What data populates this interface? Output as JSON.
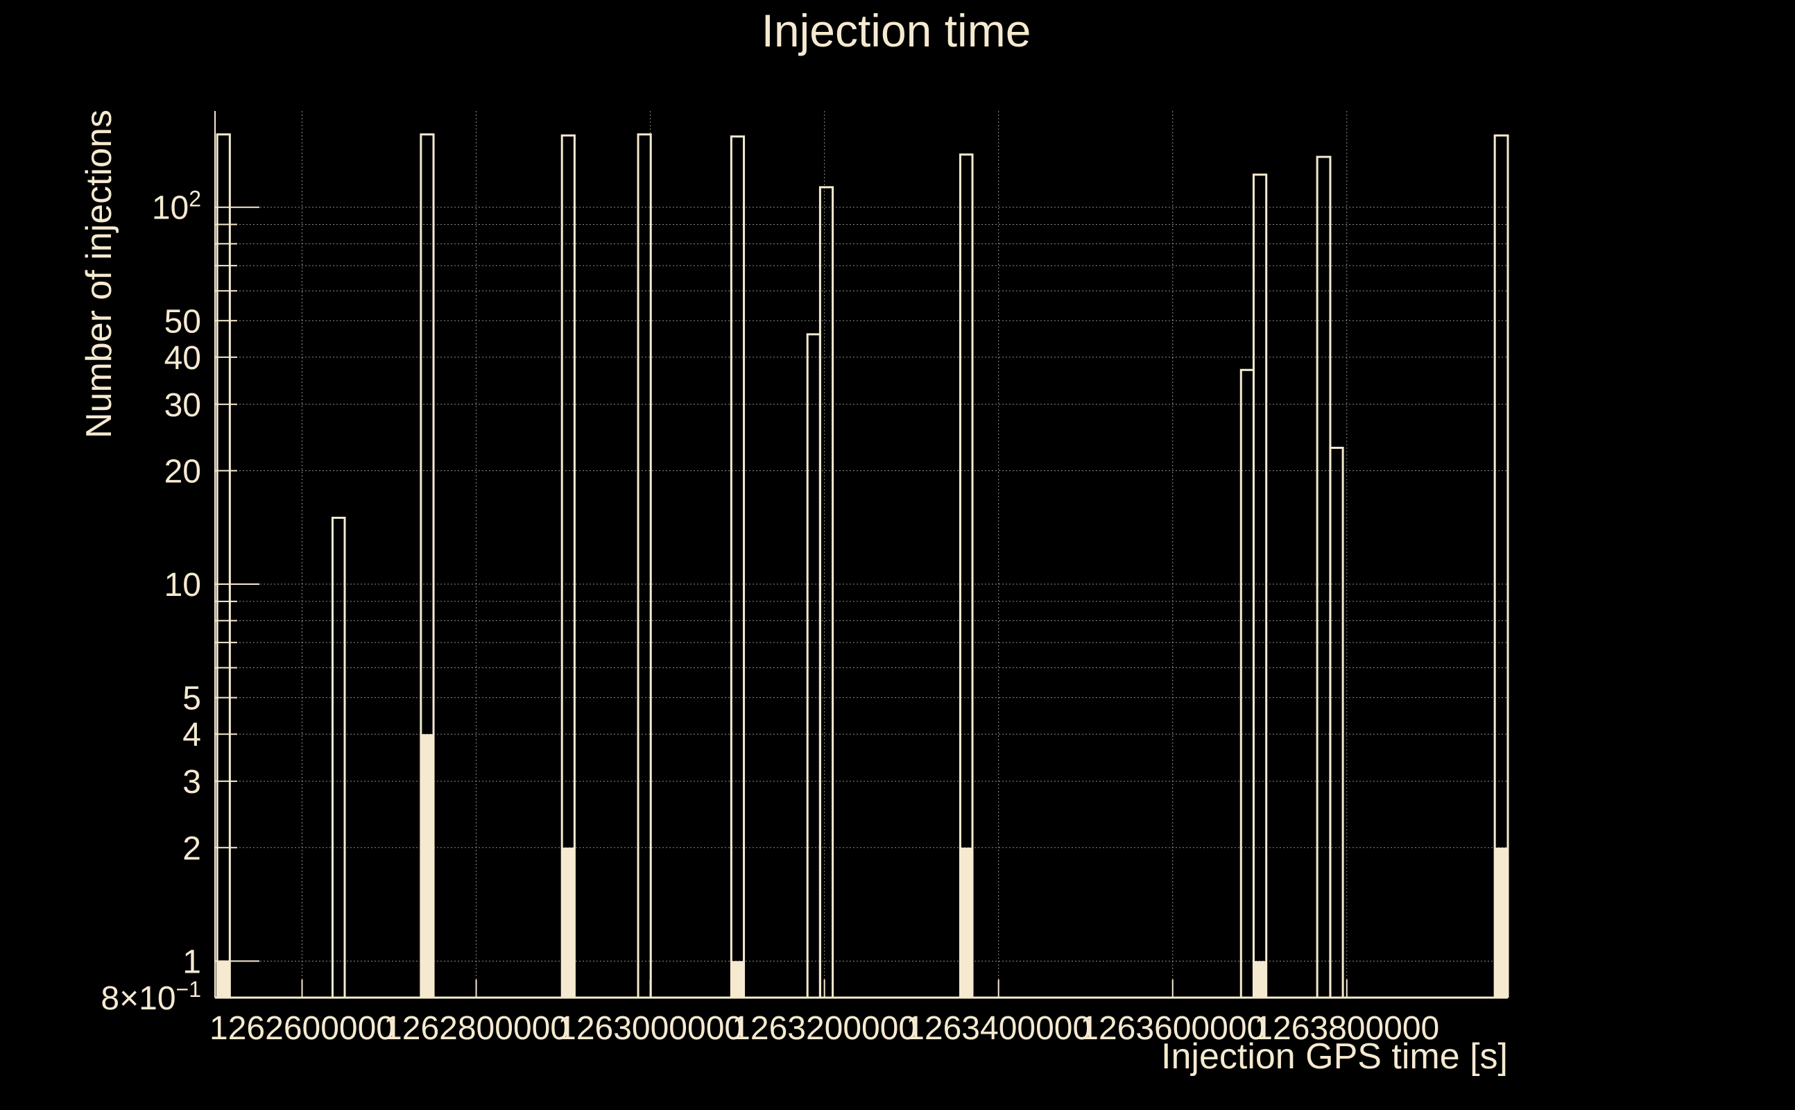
{
  "colors": {
    "background": "#000000",
    "foreground": "#f5ead0",
    "grid": "#bdbdbd"
  },
  "chart_data": {
    "type": "bar",
    "title": "Injection time",
    "xlabel": "Injection GPS time [s]",
    "ylabel": "Number of injections",
    "log_y": true,
    "grid": true,
    "xlim": [
      1262500000,
      1263985000
    ],
    "ylim": [
      0.8,
      180
    ],
    "x_ticks": [
      {
        "value": 1262600000,
        "label": "1262600000"
      },
      {
        "value": 1262800000,
        "label": "1262800000"
      },
      {
        "value": 1263000000,
        "label": "1263000000"
      },
      {
        "value": 1263200000,
        "label": "1263200000"
      },
      {
        "value": 1263400000,
        "label": "1263400000"
      },
      {
        "value": 1263600000,
        "label": "1263600000"
      },
      {
        "value": 1263800000,
        "label": "1263800000"
      }
    ],
    "y_ticks": [
      {
        "value": 0.8,
        "label": "8×10",
        "sup": "−1"
      },
      {
        "value": 1,
        "label": "1"
      },
      {
        "value": 2,
        "label": "2"
      },
      {
        "value": 3,
        "label": "3"
      },
      {
        "value": 4,
        "label": "4"
      },
      {
        "value": 5,
        "label": "5"
      },
      {
        "value": 10,
        "label": "10"
      },
      {
        "value": 20,
        "label": "20"
      },
      {
        "value": 30,
        "label": "30"
      },
      {
        "value": 40,
        "label": "40"
      },
      {
        "value": 50,
        "label": "50"
      },
      {
        "value": 100,
        "label": "10",
        "sup": "2"
      }
    ],
    "series": [
      {
        "style": "outline",
        "bins": [
          {
            "x0": 1262502500,
            "x1": 1262517000,
            "value": 156
          },
          {
            "x0": 1262635000,
            "x1": 1262649000,
            "value": 15
          },
          {
            "x0": 1262736500,
            "x1": 1262751000,
            "value": 156
          },
          {
            "x0": 1262898500,
            "x1": 1262913000,
            "value": 155
          },
          {
            "x0": 1262986000,
            "x1": 1263000500,
            "value": 156
          },
          {
            "x0": 1263093000,
            "x1": 1263107500,
            "value": 154
          },
          {
            "x0": 1263180500,
            "x1": 1263195000,
            "value": 46
          },
          {
            "x0": 1263195000,
            "x1": 1263209500,
            "value": 113
          },
          {
            "x0": 1263356000,
            "x1": 1263370000,
            "value": 138
          },
          {
            "x0": 1263678500,
            "x1": 1263693000,
            "value": 37
          },
          {
            "x0": 1263693000,
            "x1": 1263707500,
            "value": 122
          },
          {
            "x0": 1263766000,
            "x1": 1263781000,
            "value": 136
          },
          {
            "x0": 1263781000,
            "x1": 1263795500,
            "value": 23
          },
          {
            "x0": 1263970000,
            "x1": 1263985000,
            "value": 155
          }
        ]
      },
      {
        "style": "filled",
        "bins": [
          {
            "x0": 1262502500,
            "x1": 1262517000,
            "value": 1
          },
          {
            "x0": 1262736500,
            "x1": 1262751000,
            "value": 4
          },
          {
            "x0": 1262898500,
            "x1": 1262913000,
            "value": 2
          },
          {
            "x0": 1263093000,
            "x1": 1263107500,
            "value": 1
          },
          {
            "x0": 1263356000,
            "x1": 1263370000,
            "value": 2
          },
          {
            "x0": 1263693000,
            "x1": 1263707500,
            "value": 1
          },
          {
            "x0": 1263970000,
            "x1": 1263985000,
            "value": 2
          }
        ]
      }
    ]
  }
}
